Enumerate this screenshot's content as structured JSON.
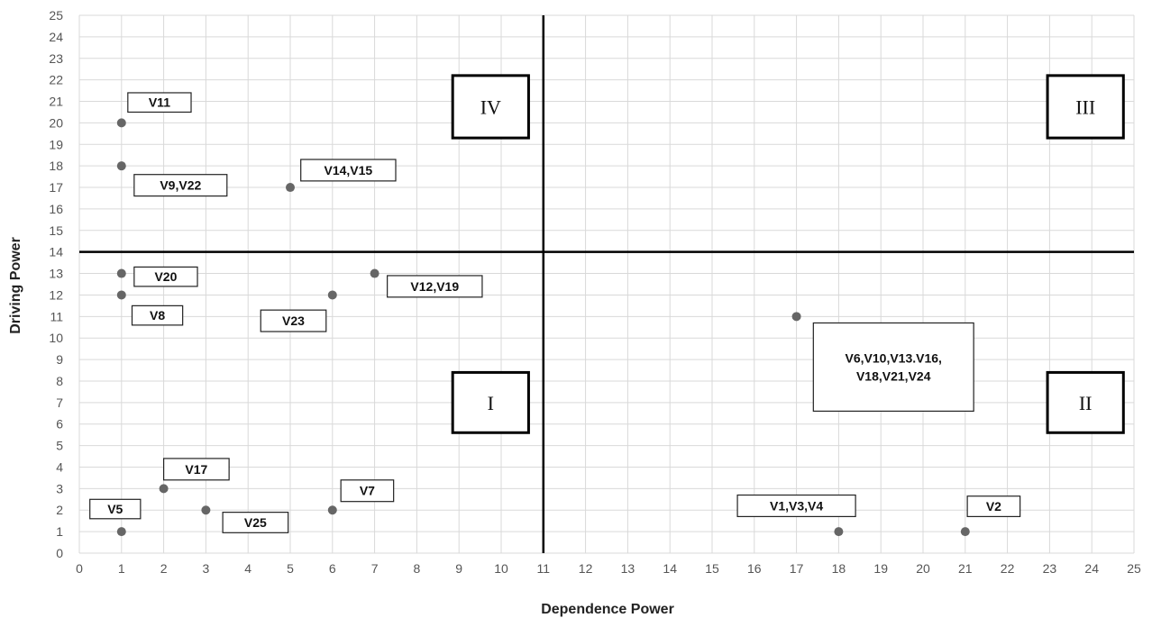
{
  "chart_data": {
    "type": "scatter",
    "title": "",
    "xlabel": "Dependence Power",
    "ylabel": "Driving Power",
    "xlim": [
      0,
      25
    ],
    "ylim": [
      0,
      25
    ],
    "xticks": [
      0,
      1,
      2,
      3,
      4,
      5,
      6,
      7,
      8,
      9,
      10,
      11,
      12,
      13,
      14,
      15,
      16,
      17,
      18,
      19,
      20,
      21,
      22,
      23,
      24,
      25
    ],
    "yticks": [
      0,
      1,
      2,
      3,
      4,
      5,
      6,
      7,
      8,
      9,
      10,
      11,
      12,
      13,
      14,
      15,
      16,
      17,
      18,
      19,
      20,
      21,
      22,
      23,
      24,
      25
    ],
    "grid": true,
    "divider_x": 11,
    "divider_y": 14,
    "points": [
      {
        "x": 1,
        "y": 20
      },
      {
        "x": 1,
        "y": 18
      },
      {
        "x": 5,
        "y": 17
      },
      {
        "x": 1,
        "y": 13
      },
      {
        "x": 1,
        "y": 12
      },
      {
        "x": 6,
        "y": 12
      },
      {
        "x": 7,
        "y": 13
      },
      {
        "x": 17,
        "y": 11
      },
      {
        "x": 2,
        "y": 3
      },
      {
        "x": 1,
        "y": 1
      },
      {
        "x": 3,
        "y": 2
      },
      {
        "x": 6,
        "y": 2
      },
      {
        "x": 18,
        "y": 1
      },
      {
        "x": 21,
        "y": 1
      }
    ],
    "annotations": [
      {
        "lines": [
          "V11"
        ]
      },
      {
        "lines": [
          "V9,V22"
        ]
      },
      {
        "lines": [
          "V14,V15"
        ]
      },
      {
        "lines": [
          "V20"
        ]
      },
      {
        "lines": [
          "V8"
        ]
      },
      {
        "lines": [
          "V23"
        ]
      },
      {
        "lines": [
          "V12,V19"
        ]
      },
      {
        "lines": [
          "V6,V10,V13.V16,",
          "V18,V21,V24"
        ]
      },
      {
        "lines": [
          "V17"
        ]
      },
      {
        "lines": [
          "V5"
        ]
      },
      {
        "lines": [
          "V25"
        ]
      },
      {
        "lines": [
          "V7"
        ]
      },
      {
        "lines": [
          "V1,V3,V4"
        ]
      },
      {
        "lines": [
          "V2"
        ]
      }
    ],
    "quadrants": [
      "IV",
      "III",
      "I",
      "II"
    ],
    "colors": {
      "point": "#666666",
      "grid": "#d9d9d9",
      "divider": "#000000"
    }
  }
}
